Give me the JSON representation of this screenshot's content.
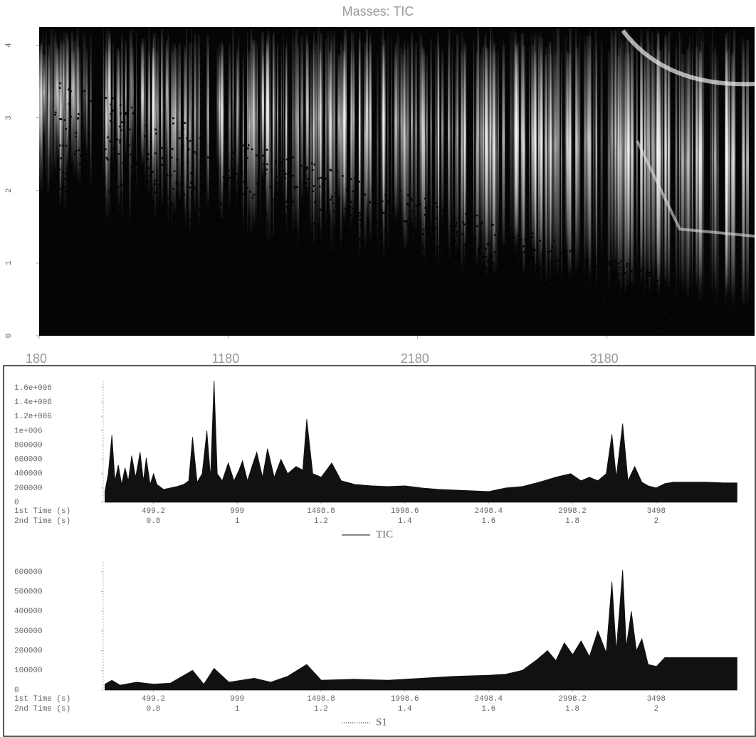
{
  "chart_data": [
    {
      "type": "heatmap",
      "title": "Masses: TIC",
      "xlim": [
        180,
        3960
      ],
      "xticks": [
        180,
        1180,
        2180,
        3180
      ],
      "ylim": [
        0,
        4.25
      ],
      "yticks": [
        0,
        1,
        2,
        3,
        4
      ]
    },
    {
      "type": "area",
      "legend": "TIC",
      "color": "#111111",
      "x_axis_labels": [
        "1st Time (s)",
        "2nd Time (s)"
      ],
      "xlim": [
        200,
        4000
      ],
      "xticks": [
        499.2,
        999,
        1498.8,
        1998.6,
        2498.4,
        2998.2,
        3498
      ],
      "xticks_2nd": [
        0.8,
        1,
        1.2,
        1.4,
        1.6,
        1.8,
        2
      ],
      "ylim": [
        0,
        1700000
      ],
      "yticks": [
        0,
        200000,
        400000,
        600000,
        800000,
        {
          "value": 1000000,
          "label": "1e+006"
        },
        {
          "value": 1200000,
          "label": "1.2e+006"
        },
        {
          "value": 1400000,
          "label": "1.4e+006"
        },
        {
          "value": 1600000,
          "label": "1.6e+006"
        }
      ],
      "x": [
        210,
        230,
        252,
        270,
        290,
        310,
        330,
        350,
        370,
        393,
        420,
        440,
        457,
        480,
        500,
        520,
        560,
        600,
        640,
        680,
        710,
        733,
        760,
        790,
        818,
        840,
        861,
        880,
        910,
        946,
        980,
        1010,
        1031,
        1060,
        1090,
        1116,
        1150,
        1180,
        1220,
        1260,
        1300,
        1350,
        1390,
        1414,
        1450,
        1500,
        1563,
        1620,
        1700,
        1800,
        1900,
        2000,
        2100,
        2200,
        2300,
        2400,
        2500,
        2600,
        2700,
        2800,
        2900,
        2988,
        3050,
        3100,
        3150,
        3200,
        3234,
        3260,
        3298,
        3330,
        3370,
        3413,
        3450,
        3498,
        3550,
        3600,
        3700,
        3800,
        3900,
        3980
      ],
      "values": [
        150000,
        400000,
        940000,
        300000,
        520000,
        250000,
        480000,
        300000,
        650000,
        350000,
        700000,
        300000,
        620000,
        250000,
        400000,
        250000,
        180000,
        200000,
        220000,
        250000,
        300000,
        910000,
        280000,
        400000,
        1000000,
        350000,
        1700000,
        400000,
        300000,
        550000,
        300000,
        450000,
        580000,
        300000,
        520000,
        700000,
        350000,
        750000,
        350000,
        600000,
        400000,
        500000,
        450000,
        1160000,
        400000,
        350000,
        550000,
        300000,
        250000,
        230000,
        220000,
        230000,
        200000,
        180000,
        170000,
        160000,
        150000,
        200000,
        220000,
        280000,
        350000,
        400000,
        300000,
        350000,
        300000,
        400000,
        950000,
        350000,
        1100000,
        300000,
        500000,
        280000,
        230000,
        200000,
        260000,
        280000,
        280000,
        280000,
        270000,
        270000
      ]
    },
    {
      "type": "area",
      "legend": "S1",
      "color": "#111111",
      "x_axis_labels": [
        "1st Time (s)",
        "2nd Time (s)"
      ],
      "xlim": [
        200,
        4000
      ],
      "xticks": [
        499.2,
        999,
        1498.8,
        1998.6,
        2498.4,
        2998.2,
        3498
      ],
      "xticks_2nd": [
        0.8,
        1,
        1.2,
        1.4,
        1.6,
        1.8,
        2
      ],
      "ylim": [
        0,
        650000
      ],
      "yticks": [
        0,
        100000,
        200000,
        300000,
        400000,
        500000,
        600000
      ],
      "x": [
        210,
        252,
        300,
        400,
        500,
        600,
        733,
        800,
        861,
        950,
        1100,
        1200,
        1300,
        1414,
        1500,
        1700,
        1900,
        2100,
        2300,
        2500,
        2600,
        2700,
        2780,
        2850,
        2900,
        2950,
        3000,
        3050,
        3100,
        3150,
        3200,
        3234,
        3260,
        3298,
        3320,
        3350,
        3380,
        3413,
        3450,
        3500,
        3550,
        3600,
        3800,
        3980
      ],
      "values": [
        30000,
        50000,
        25000,
        40000,
        30000,
        35000,
        100000,
        30000,
        110000,
        40000,
        60000,
        40000,
        70000,
        130000,
        50000,
        55000,
        50000,
        60000,
        70000,
        75000,
        80000,
        100000,
        150000,
        200000,
        150000,
        240000,
        180000,
        250000,
        170000,
        300000,
        190000,
        550000,
        200000,
        610000,
        220000,
        400000,
        200000,
        260000,
        130000,
        120000,
        165000,
        165000,
        165000,
        165000
      ]
    }
  ]
}
